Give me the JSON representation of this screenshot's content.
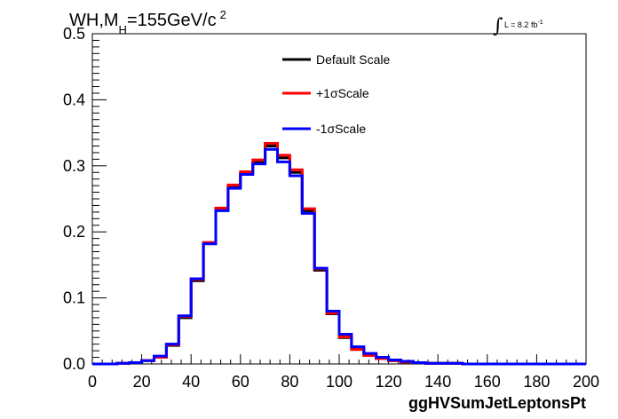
{
  "header": {
    "title_part1": "WH,M",
    "title_sub": "H",
    "title_part2": "=155GeV/c",
    "title_sup": "2",
    "lumi_label": "L = 8.2 fb",
    "lumi_sup": "-1"
  },
  "chart_data": {
    "type": "line",
    "step": true,
    "xlabel": "ggHVSumJetLeptonsPt",
    "ylabel": "",
    "xlim": [
      0,
      200
    ],
    "ylim": [
      0,
      0.5
    ],
    "x_ticks": [
      "0",
      "20",
      "40",
      "60",
      "80",
      "100",
      "120",
      "140",
      "160",
      "180",
      "200"
    ],
    "y_ticks": [
      "0.0",
      "0.1",
      "0.2",
      "0.3",
      "0.4",
      "0.5"
    ],
    "grid": false,
    "legend_position": "top-center",
    "bin_edges": [
      0,
      5,
      10,
      15,
      20,
      25,
      30,
      35,
      40,
      45,
      50,
      55,
      60,
      65,
      70,
      75,
      80,
      85,
      90,
      95,
      100,
      105,
      110,
      115,
      120,
      125,
      130,
      135,
      140,
      145,
      150,
      155,
      160,
      165,
      170,
      175,
      180,
      185,
      190,
      195,
      200
    ],
    "series": [
      {
        "name": "Default Scale",
        "color": "#000000",
        "values": [
          0.0,
          0.0,
          0.001,
          0.002,
          0.005,
          0.01,
          0.028,
          0.07,
          0.126,
          0.182,
          0.233,
          0.268,
          0.288,
          0.305,
          0.33,
          0.312,
          0.29,
          0.232,
          0.142,
          0.076,
          0.04,
          0.022,
          0.013,
          0.008,
          0.005,
          0.003,
          0.002,
          0.001,
          0.001,
          0.001,
          0.0,
          0.0,
          0.0,
          0.0,
          0.0,
          0.0,
          0.0,
          0.0,
          0.0,
          0.0
        ]
      },
      {
        "name": "+1σScale",
        "color": "#ff0000",
        "values": [
          0.0,
          0.0,
          0.001,
          0.002,
          0.005,
          0.01,
          0.029,
          0.072,
          0.128,
          0.184,
          0.236,
          0.271,
          0.291,
          0.309,
          0.334,
          0.316,
          0.294,
          0.235,
          0.144,
          0.077,
          0.041,
          0.022,
          0.013,
          0.008,
          0.005,
          0.003,
          0.002,
          0.001,
          0.001,
          0.001,
          0.0,
          0.0,
          0.0,
          0.0,
          0.0,
          0.0,
          0.0,
          0.0,
          0.0,
          0.0
        ]
      },
      {
        "name": "-1σScale",
        "color": "#0000ff",
        "values": [
          0.0,
          0.0,
          0.001,
          0.002,
          0.005,
          0.012,
          0.03,
          0.073,
          0.129,
          0.182,
          0.232,
          0.266,
          0.287,
          0.303,
          0.325,
          0.306,
          0.285,
          0.228,
          0.145,
          0.08,
          0.045,
          0.026,
          0.016,
          0.01,
          0.006,
          0.004,
          0.002,
          0.001,
          0.001,
          0.001,
          0.0,
          0.0,
          0.0,
          0.0,
          0.0,
          0.0,
          0.0,
          0.0,
          0.0,
          0.0
        ]
      }
    ]
  }
}
